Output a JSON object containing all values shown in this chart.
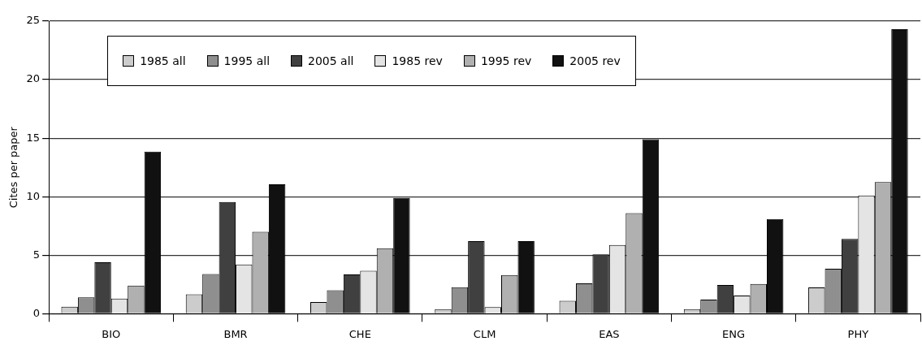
{
  "chart_data": {
    "type": "bar",
    "ylabel": "Cites per paper",
    "categories": [
      "BIO",
      "BMR",
      "CHE",
      "CLM",
      "EAS",
      "ENG",
      "PHY"
    ],
    "series": [
      {
        "name": "1985 all",
        "color": "#cccccc",
        "values": [
          0.6,
          1.65,
          1.0,
          0.4,
          1.1,
          0.4,
          2.25
        ]
      },
      {
        "name": "1995 all",
        "color": "#8f8f8f",
        "values": [
          1.4,
          3.4,
          2.0,
          2.27,
          2.6,
          1.2,
          3.85
        ]
      },
      {
        "name": "2005 all",
        "color": "#404040",
        "values": [
          4.4,
          9.55,
          3.35,
          6.2,
          5.07,
          2.45,
          6.4
        ]
      },
      {
        "name": "1985 rev",
        "color": "#e4e4e4",
        "values": [
          1.3,
          4.2,
          3.67,
          0.57,
          5.87,
          1.55,
          10.1
        ]
      },
      {
        "name": "1995 rev",
        "color": "#b0b0b0",
        "values": [
          2.4,
          7.0,
          5.6,
          3.3,
          8.6,
          2.55,
          11.25
        ]
      },
      {
        "name": "2005 rev",
        "color": "#111111",
        "values": [
          13.85,
          11.05,
          9.9,
          6.2,
          14.9,
          8.1,
          24.3
        ]
      }
    ],
    "ylim": [
      0,
      25
    ],
    "yticks": [
      0,
      5,
      10,
      15,
      20,
      25
    ],
    "grid": "y",
    "legend": "top left"
  }
}
